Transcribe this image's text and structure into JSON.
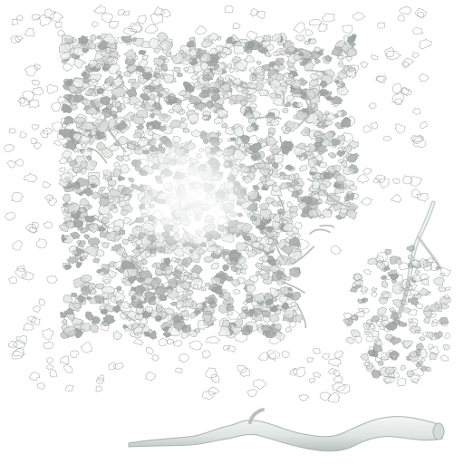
{
  "palette": {
    "background": "#ffffff",
    "leaf_fill": "#d9dcda",
    "leaf_light": "#eef0ef",
    "leaf_dark": "#9fa5a2",
    "leaf_outline": "#8c9390",
    "branch_fill": "#dfe5e2",
    "branch_edge": "#aab3af",
    "glow": "#ffffff"
  },
  "parts": {
    "foliage_canopy": "leaf-cluster",
    "foliage_sprig": "leaf-sprig",
    "branch": "bare-branch"
  }
}
